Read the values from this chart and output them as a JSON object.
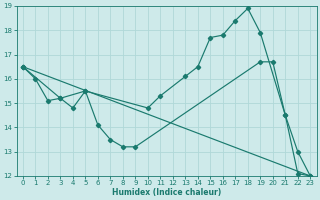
{
  "xlabel": "Humidex (Indice chaleur)",
  "xlim": [
    -0.5,
    23.5
  ],
  "ylim": [
    12,
    19
  ],
  "yticks": [
    12,
    13,
    14,
    15,
    16,
    17,
    18,
    19
  ],
  "xticks": [
    0,
    1,
    2,
    3,
    4,
    5,
    6,
    7,
    8,
    9,
    10,
    11,
    12,
    13,
    14,
    15,
    16,
    17,
    18,
    19,
    20,
    21,
    22,
    23
  ],
  "background_color": "#ceeaea",
  "grid_color": "#b0d8d8",
  "line_color": "#1a7a6e",
  "lines": [
    {
      "x": [
        0,
        1,
        2,
        3,
        5,
        10,
        11,
        13,
        14,
        15,
        16,
        17,
        18,
        19,
        21,
        22,
        23
      ],
      "y": [
        16.5,
        16.0,
        15.1,
        15.2,
        15.5,
        14.8,
        15.3,
        16.1,
        16.5,
        17.7,
        17.8,
        18.4,
        18.9,
        17.9,
        14.5,
        13.0,
        12.0
      ]
    },
    {
      "x": [
        0,
        3,
        4,
        5,
        6,
        7,
        8,
        9,
        19,
        20,
        21,
        22,
        23
      ],
      "y": [
        16.5,
        15.2,
        14.8,
        15.5,
        14.1,
        13.5,
        13.2,
        13.2,
        16.7,
        16.7,
        14.5,
        12.1,
        12.0
      ]
    },
    {
      "x": [
        0,
        23
      ],
      "y": [
        16.5,
        12.0
      ]
    }
  ]
}
